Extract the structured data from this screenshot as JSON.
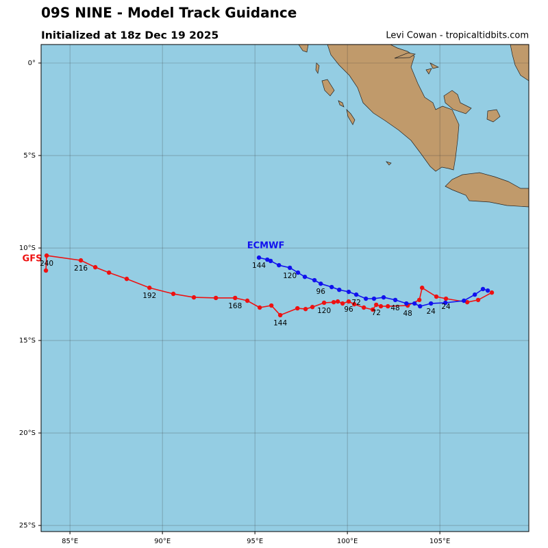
{
  "chart_data": {
    "type": "track",
    "title": "09S NINE - Model Track Guidance",
    "subtitle": "Initialized at 18z Dec 19 2025",
    "credit": "Levi Cowan - tropicaltidbits.com",
    "xlim": [
      83.44,
      109.81
    ],
    "ylim": [
      -25.33,
      1.0
    ],
    "xticks": [
      {
        "value": 85,
        "label": "85°E"
      },
      {
        "value": 90,
        "label": "90°E"
      },
      {
        "value": 95,
        "label": "95°E"
      },
      {
        "value": 100,
        "label": "100°E"
      },
      {
        "value": 105,
        "label": "105°E"
      }
    ],
    "yticks": [
      {
        "value": 0,
        "label": "0°"
      },
      {
        "value": -5,
        "label": "5°S"
      },
      {
        "value": -10,
        "label": "10°S"
      },
      {
        "value": -15,
        "label": "15°S"
      },
      {
        "value": -20,
        "label": "20°S"
      },
      {
        "value": -25,
        "label": "25°S"
      }
    ],
    "grid": true,
    "series": [
      {
        "name": "GFS",
        "color": "#ee1111",
        "x": [
          107.81,
          107.07,
          106.48,
          105.33,
          104.81,
          104.04,
          103.89,
          103.26,
          102.19,
          101.81,
          101.56,
          101.37,
          100.89,
          100.37,
          100.07,
          99.74,
          99.48,
          99.26,
          98.74,
          98.11,
          97.74,
          97.3,
          96.37,
          95.89,
          95.26,
          94.59,
          93.93,
          92.89,
          91.7,
          90.59,
          89.3,
          88.07,
          87.11,
          86.37,
          85.59,
          83.74,
          83.7
        ],
        "y": [
          -12.41,
          -12.81,
          -12.93,
          -12.74,
          -12.63,
          -12.15,
          -12.81,
          -13.11,
          -13.15,
          -13.15,
          -13.07,
          -13.33,
          -13.22,
          -13.04,
          -12.89,
          -13.0,
          -12.89,
          -12.93,
          -12.96,
          -13.19,
          -13.3,
          -13.26,
          -13.63,
          -13.11,
          -13.22,
          -12.85,
          -12.7,
          -12.7,
          -12.67,
          -12.48,
          -12.15,
          -11.67,
          -11.33,
          -11.04,
          -10.67,
          -10.41,
          -11.22
        ],
        "point_labels": [
          null,
          null,
          null,
          "24",
          null,
          null,
          null,
          "48",
          null,
          null,
          "72",
          null,
          null,
          null,
          "96",
          null,
          null,
          null,
          "120",
          null,
          null,
          null,
          "144",
          null,
          null,
          null,
          "168",
          null,
          null,
          null,
          "192",
          null,
          null,
          null,
          "216",
          "240",
          null
        ]
      },
      {
        "name": "ECMWF",
        "color": "#1111ee",
        "x": [
          107.59,
          107.33,
          106.89,
          106.3,
          105.3,
          104.52,
          103.93,
          103.63,
          103.19,
          102.59,
          101.96,
          101.44,
          101.0,
          100.48,
          100.07,
          99.56,
          99.15,
          98.56,
          98.22,
          97.7,
          97.33,
          96.89,
          96.3,
          95.85,
          95.67,
          95.22
        ],
        "y": [
          -12.3,
          -12.22,
          -12.52,
          -12.85,
          -12.96,
          -13.0,
          -13.15,
          -13.0,
          -13.0,
          -12.81,
          -12.67,
          -12.74,
          -12.74,
          -12.52,
          -12.37,
          -12.26,
          -12.11,
          -11.93,
          -11.74,
          -11.56,
          -11.33,
          -11.07,
          -10.93,
          -10.7,
          -10.63,
          -10.52
        ],
        "point_labels": [
          null,
          null,
          null,
          null,
          null,
          "24",
          null,
          null,
          null,
          "48",
          null,
          null,
          null,
          "72",
          null,
          null,
          null,
          "96",
          null,
          null,
          null,
          "120",
          null,
          null,
          null,
          "144"
        ]
      }
    ]
  }
}
